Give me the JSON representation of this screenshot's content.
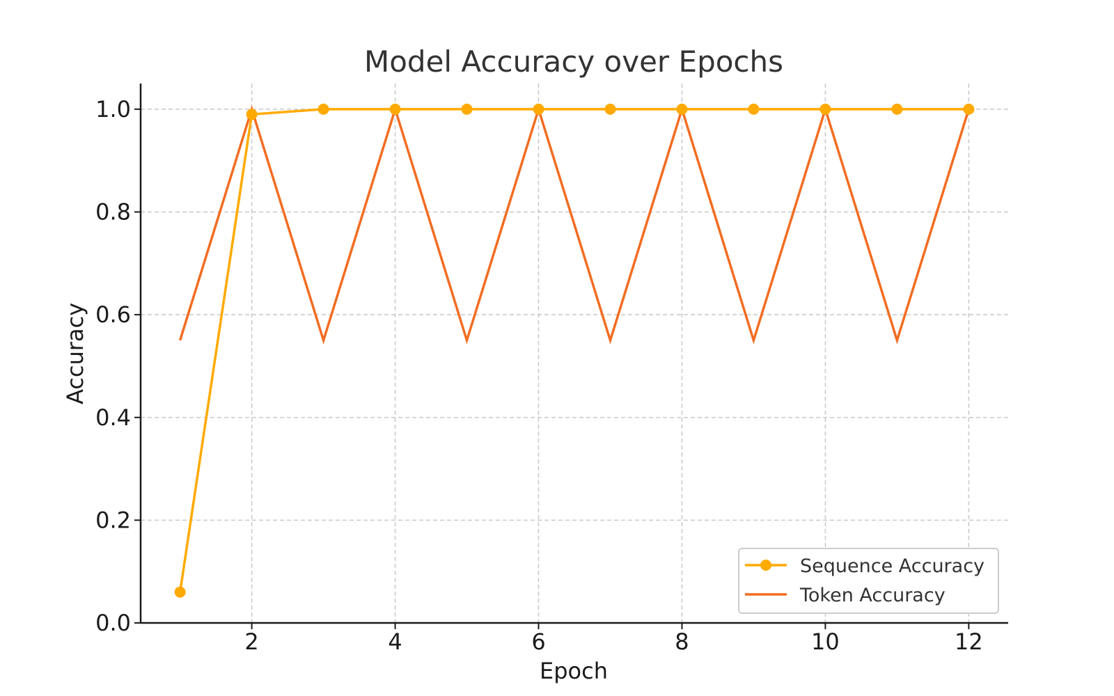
{
  "chart_data": {
    "type": "line",
    "title": "Model Accuracy over Epochs",
    "xlabel": "Epoch",
    "ylabel": "Accuracy",
    "x": [
      1,
      2,
      3,
      4,
      5,
      6,
      7,
      8,
      9,
      10,
      11,
      12
    ],
    "xlim": [
      0.45,
      12.55
    ],
    "ylim": [
      0,
      1.05
    ],
    "xticks": [
      2,
      4,
      6,
      8,
      10,
      12
    ],
    "yticks": [
      0.0,
      0.2,
      0.4,
      0.6,
      0.8,
      1.0
    ],
    "xtick_labels": [
      "2",
      "4",
      "6",
      "8",
      "10",
      "12"
    ],
    "ytick_labels": [
      "0.0",
      "0.2",
      "0.4",
      "0.6",
      "0.8",
      "1.0"
    ],
    "grid": true,
    "legend_position": "bottom-right",
    "series": [
      {
        "name": "Sequence Accuracy",
        "color": "#FFAA00",
        "marker": "circle",
        "values": [
          0.06,
          0.99,
          1.0,
          1.0,
          1.0,
          1.0,
          1.0,
          1.0,
          1.0,
          1.0,
          1.0,
          1.0
        ]
      },
      {
        "name": "Token Accuracy",
        "color": "#F36C21",
        "marker": "none",
        "values": [
          0.55,
          1.0,
          0.55,
          1.0,
          0.55,
          1.0,
          0.55,
          1.0,
          0.55,
          1.0,
          0.55,
          1.0
        ]
      }
    ]
  }
}
